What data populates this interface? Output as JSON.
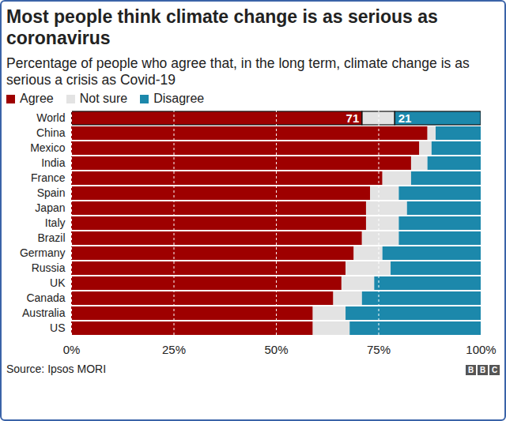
{
  "chart_data": {
    "type": "bar",
    "title": "Most people think climate change is as serious as coronavirus",
    "subtitle": "Percentage of people who agree that, in the long term, climate change is as serious a crisis as Covid-19",
    "source": "Source: Ipsos MORI",
    "logo": "BBC",
    "orientation": "horizontal",
    "stacked": true,
    "grid": true,
    "legend": "top-left",
    "data_labels": true,
    "categories": [
      "World",
      "China",
      "Mexico",
      "India",
      "France",
      "Spain",
      "Japan",
      "Italy",
      "Brazil",
      "Germany",
      "Russia",
      "UK",
      "Canada",
      "Australia",
      "US"
    ],
    "series": [
      {
        "name": "Agree",
        "color": "#9e0000",
        "values": [
          71,
          87,
          85,
          83,
          76,
          73,
          72,
          72,
          71,
          69,
          67,
          66,
          64,
          59,
          59
        ],
        "value_labels": [
          "71",
          null,
          null,
          null,
          null,
          null,
          null,
          null,
          null,
          null,
          null,
          null,
          null,
          null,
          null
        ]
      },
      {
        "name": "Not sure",
        "color": "#e3e3e3",
        "values": [
          8,
          2,
          3,
          4,
          7,
          7,
          10,
          8,
          9,
          7,
          11,
          8,
          7,
          8,
          9
        ]
      },
      {
        "name": "Disagree",
        "color": "#1c88ab",
        "values": [
          21,
          11,
          12,
          13,
          17,
          20,
          18,
          20,
          20,
          24,
          22,
          26,
          29,
          33,
          32
        ],
        "value_labels": [
          "21",
          null,
          null,
          null,
          null,
          null,
          null,
          null,
          null,
          null,
          null,
          null,
          null,
          null,
          null
        ]
      }
    ],
    "xlim": [
      0,
      100
    ],
    "xticks": [
      {
        "value": 0,
        "label": "0%"
      },
      {
        "value": 25,
        "label": "25%"
      },
      {
        "value": 50,
        "label": "50%"
      },
      {
        "value": 75,
        "label": "75%"
      },
      {
        "value": 100,
        "label": "100%"
      }
    ]
  }
}
